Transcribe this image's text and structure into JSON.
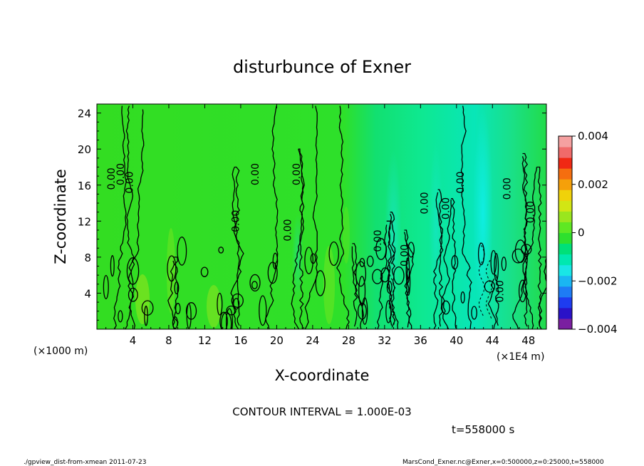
{
  "chart_data": {
    "type": "heatmap",
    "title": "disturbunce of Exner",
    "xlabel": "X-coordinate",
    "ylabel": "Z-coordinate",
    "x_unit_left": "(×1000 m)",
    "x_unit_right": "(×1E4 m)",
    "xlim": [
      0,
      50
    ],
    "ylim": [
      0,
      25
    ],
    "x_ticks": [
      {
        "v": 4,
        "label": "4"
      },
      {
        "v": 8,
        "label": "8"
      },
      {
        "v": 12,
        "label": "12"
      },
      {
        "v": 16,
        "label": "16"
      },
      {
        "v": 20,
        "label": "20"
      },
      {
        "v": 24,
        "label": "24"
      },
      {
        "v": 28,
        "label": "28"
      },
      {
        "v": 32,
        "label": "32"
      },
      {
        "v": 36,
        "label": "36"
      },
      {
        "v": 40,
        "label": "40"
      },
      {
        "v": 44,
        "label": "44"
      },
      {
        "v": 48,
        "label": "48"
      }
    ],
    "y_ticks": [
      {
        "v": 4,
        "label": "4"
      },
      {
        "v": 8,
        "label": "8"
      },
      {
        "v": 12,
        "label": "12"
      },
      {
        "v": 16,
        "label": "16"
      },
      {
        "v": 20,
        "label": "20"
      },
      {
        "v": 24,
        "label": "24"
      }
    ],
    "colorbar": {
      "range": [
        -0.004,
        0.004
      ],
      "tick_values": [
        0.004,
        0.002,
        0,
        -0.002,
        -0.004
      ],
      "tick_labels": [
        "0.004",
        "0.002",
        "0",
        "−0.002",
        "−0.004"
      ],
      "colors": [
        "#7a1fa0",
        "#2a12c8",
        "#1e3cf0",
        "#1e7cf5",
        "#1ab6f2",
        "#19e6e6",
        "#00e8b0",
        "#00e078",
        "#2ee02e",
        "#5ee823",
        "#9ae61e",
        "#d2e614",
        "#f0d20a",
        "#f5a00a",
        "#f56e0f",
        "#f02814",
        "#f06a6a",
        "#f5a0a0"
      ]
    },
    "contour_interval": "CONTOUR INTERVAL = 1.000E-03",
    "contour_labels": [
      {
        "x": 2.0,
        "y": 16.7,
        "text": "0.00"
      },
      {
        "x": 3.0,
        "y": 17.2,
        "text": "0.00"
      },
      {
        "x": 4.0,
        "y": 16.3,
        "text": "0.00"
      },
      {
        "x": 15.8,
        "y": 12.0,
        "text": "0.00"
      },
      {
        "x": 18.0,
        "y": 17.2,
        "text": "0.00"
      },
      {
        "x": 22.6,
        "y": 17.2,
        "text": "0.00"
      },
      {
        "x": 21.6,
        "y": 11.0,
        "text": "0.00"
      },
      {
        "x": 31.6,
        "y": 9.8,
        "text": "0.00"
      },
      {
        "x": 34.6,
        "y": 8.2,
        "text": "0.00"
      },
      {
        "x": 36.8,
        "y": 14.0,
        "text": "0.00"
      },
      {
        "x": 39.2,
        "y": 13.4,
        "text": "0.00"
      },
      {
        "x": 40.8,
        "y": 16.3,
        "text": "0.00"
      },
      {
        "x": 46.0,
        "y": 15.6,
        "text": "0.00"
      },
      {
        "x": 48.6,
        "y": 13.0,
        "text": "0.00"
      },
      {
        "x": 45.2,
        "y": 4.2,
        "text": "0.00"
      }
    ]
  },
  "annotations": {
    "time": "t=558000 s",
    "footer_left": "./gpview_dist-from-xmean  2011-07-23",
    "footer_right": "MarsCond_Exner.nc@Exner,x=0:500000,z=0:25000,t=558000"
  }
}
